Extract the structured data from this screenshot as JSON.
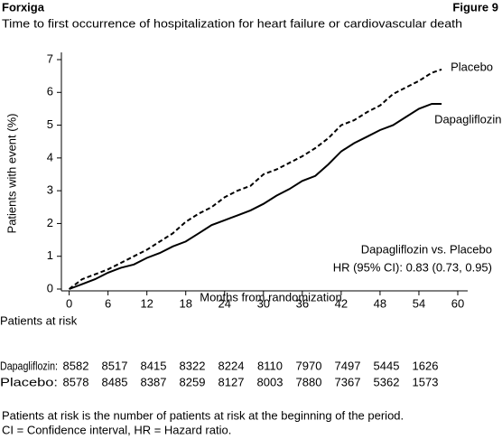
{
  "header": {
    "left": "Forxiga",
    "right": "Figure 9"
  },
  "chart_data": {
    "type": "line",
    "title": "Time to first occurrence of hospitalization for heart failure or cardiovascular death",
    "xlabel": "Months from randomization",
    "ylabel": "Patients with event (%)",
    "xlim": [
      -1.2,
      60
    ],
    "ylim": [
      0,
      7
    ],
    "xticks": [
      0,
      6,
      12,
      18,
      24,
      30,
      36,
      42,
      48,
      54,
      60
    ],
    "yticks": [
      0,
      1,
      2,
      3,
      4,
      5,
      6,
      7
    ],
    "series": [
      {
        "name": "Placebo",
        "color": "#000000",
        "linestyle": "dashed",
        "x": [
          0,
          2,
          4,
          6,
          8,
          10,
          12,
          14,
          16,
          18,
          20,
          22,
          24,
          26,
          28,
          30,
          32,
          34,
          36,
          38,
          40,
          42,
          44,
          46,
          48,
          50,
          52,
          54,
          56,
          57.5
        ],
        "values": [
          0,
          0.3,
          0.45,
          0.6,
          0.8,
          1.0,
          1.2,
          1.45,
          1.7,
          2.05,
          2.3,
          2.5,
          2.8,
          3.0,
          3.15,
          3.5,
          3.65,
          3.85,
          4.05,
          4.3,
          4.6,
          5.0,
          5.15,
          5.4,
          5.6,
          5.95,
          6.15,
          6.35,
          6.6,
          6.7
        ]
      },
      {
        "name": "Dapagliflozin",
        "color": "#000000",
        "linestyle": "solid",
        "x": [
          0,
          2,
          4,
          6,
          8,
          10,
          12,
          14,
          16,
          18,
          20,
          22,
          24,
          26,
          28,
          30,
          32,
          34,
          36,
          38,
          40,
          42,
          44,
          46,
          48,
          50,
          52,
          54,
          56,
          57.5
        ],
        "values": [
          0,
          0.15,
          0.3,
          0.5,
          0.65,
          0.75,
          0.95,
          1.1,
          1.3,
          1.45,
          1.7,
          1.95,
          2.1,
          2.25,
          2.4,
          2.6,
          2.85,
          3.05,
          3.3,
          3.45,
          3.8,
          4.2,
          4.45,
          4.65,
          4.85,
          5.0,
          5.25,
          5.5,
          5.65,
          5.65
        ]
      }
    ],
    "annotations": [
      "Dapagliflozin vs. Placebo",
      "HR (95% CI):  0.83 (0.73, 0.95)"
    ]
  },
  "at_risk": {
    "title": "Patients at risk",
    "rows": [
      {
        "label": "Dapagliflozin:",
        "values": [
          8582,
          8517,
          8415,
          8322,
          8224,
          8110,
          7970,
          7497,
          5445,
          1626
        ]
      },
      {
        "label": "Placebo:",
        "values": [
          8578,
          8485,
          8387,
          8259,
          8127,
          8003,
          7880,
          7367,
          5362,
          1573
        ]
      }
    ]
  },
  "footnotes": [
    "Patients at risk is the number of patients at risk at the beginning of the period.",
    "CI = Confidence interval, HR = Hazard ratio."
  ]
}
